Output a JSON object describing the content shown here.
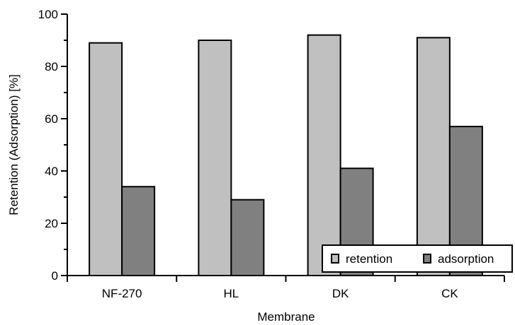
{
  "chart_data": {
    "type": "bar",
    "categories": [
      "NF-270",
      "HL",
      "DK",
      "CK"
    ],
    "series": [
      {
        "name": "retention",
        "values": [
          89,
          90,
          92,
          91
        ],
        "color": "#c0c0c0"
      },
      {
        "name": "adsorption",
        "values": [
          34,
          29,
          41,
          57
        ],
        "color": "#808080"
      }
    ],
    "title": "",
    "xlabel": "Membrane",
    "ylabel": "Retention (Adsorption) [%]",
    "ylim": [
      0,
      100
    ],
    "yticks": [
      0,
      20,
      40,
      60,
      80,
      100
    ],
    "grid": false,
    "legend_position": "bottom-right"
  }
}
